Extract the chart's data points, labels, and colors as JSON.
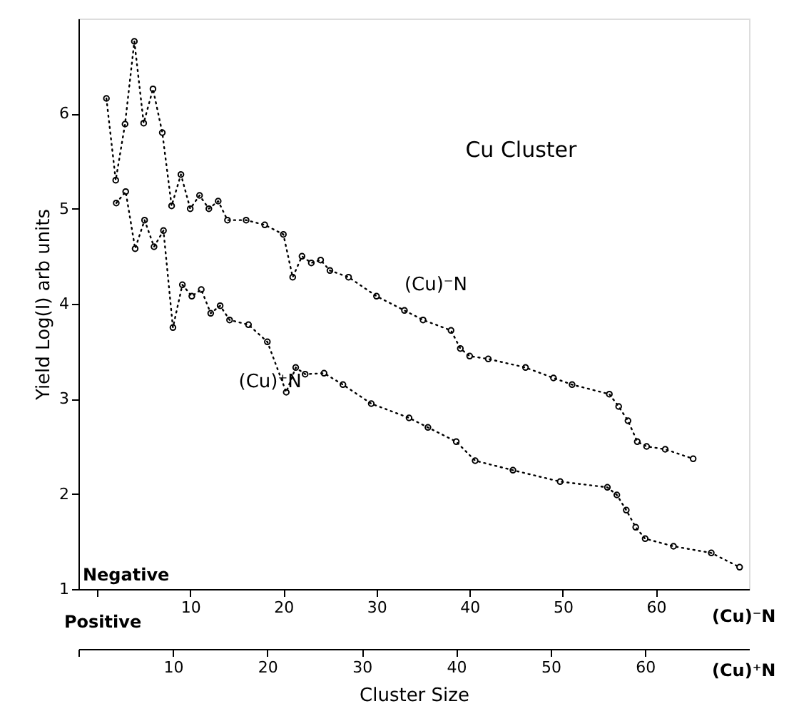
{
  "chart_data": {
    "type": "line",
    "title": "Cu Cluster",
    "xlabel": "Cluster Size",
    "ylabel": "Yield  Log(I)   arb  units",
    "annotations": [
      "Negative",
      "Positive",
      "(Cu)⁻N",
      "(Cu)⁺N"
    ],
    "xlim": [
      -2,
      70
    ],
    "xticks": [
      {
        "value": 0,
        "label": null
      },
      10,
      20,
      30,
      40,
      50,
      60
    ],
    "x2lim": [
      0,
      71
    ],
    "x2ticks": [
      {
        "value": 0,
        "label": null
      },
      10,
      20,
      30,
      40,
      50,
      60
    ],
    "ylim": [
      1,
      7
    ],
    "yticks": [
      1,
      2,
      3,
      4,
      5,
      6
    ],
    "grid": false,
    "marker": "circle",
    "line_style": "dotted",
    "series": [
      {
        "name": "(Cu)⁻N",
        "color": "#000000",
        "x": [
          1,
          2,
          3,
          4,
          5,
          6,
          7,
          8,
          9,
          10,
          11,
          12,
          13,
          14,
          16,
          18,
          20,
          21,
          22,
          23,
          24,
          25,
          27,
          30,
          33,
          35,
          38,
          39,
          40,
          42,
          46,
          49,
          51,
          55,
          56,
          57,
          58,
          59,
          61,
          64
        ],
        "values": [
          6.16,
          5.3,
          5.89,
          6.76,
          5.9,
          6.26,
          5.8,
          5.03,
          5.36,
          5.0,
          5.14,
          5.0,
          5.08,
          4.88,
          4.88,
          4.83,
          4.73,
          4.28,
          4.5,
          4.43,
          4.46,
          4.35,
          4.28,
          4.08,
          3.93,
          3.83,
          3.72,
          3.53,
          3.45,
          3.42,
          3.33,
          3.22,
          3.15,
          3.05,
          2.92,
          2.77,
          2.55,
          2.5,
          2.47,
          2.37
        ]
      },
      {
        "name": "(Cu)⁺N",
        "color": "#000000",
        "axis": "x2",
        "x": [
          4,
          5,
          6,
          7,
          8,
          9,
          10,
          11,
          12,
          13,
          14,
          15,
          16,
          18,
          20,
          22,
          23,
          24,
          26,
          28,
          31,
          35,
          37,
          40,
          42,
          46,
          51,
          56,
          57,
          58,
          59,
          60,
          63,
          67,
          70
        ],
        "values": [
          5.06,
          5.18,
          4.58,
          4.88,
          4.6,
          4.77,
          3.75,
          4.2,
          4.08,
          4.15,
          3.9,
          3.98,
          3.83,
          3.78,
          3.6,
          3.07,
          3.33,
          3.26,
          3.27,
          3.15,
          2.95,
          2.8,
          2.7,
          2.55,
          2.35,
          2.25,
          2.13,
          2.07,
          1.99,
          1.83,
          1.65,
          1.53,
          1.45,
          1.38,
          1.23
        ]
      }
    ]
  }
}
